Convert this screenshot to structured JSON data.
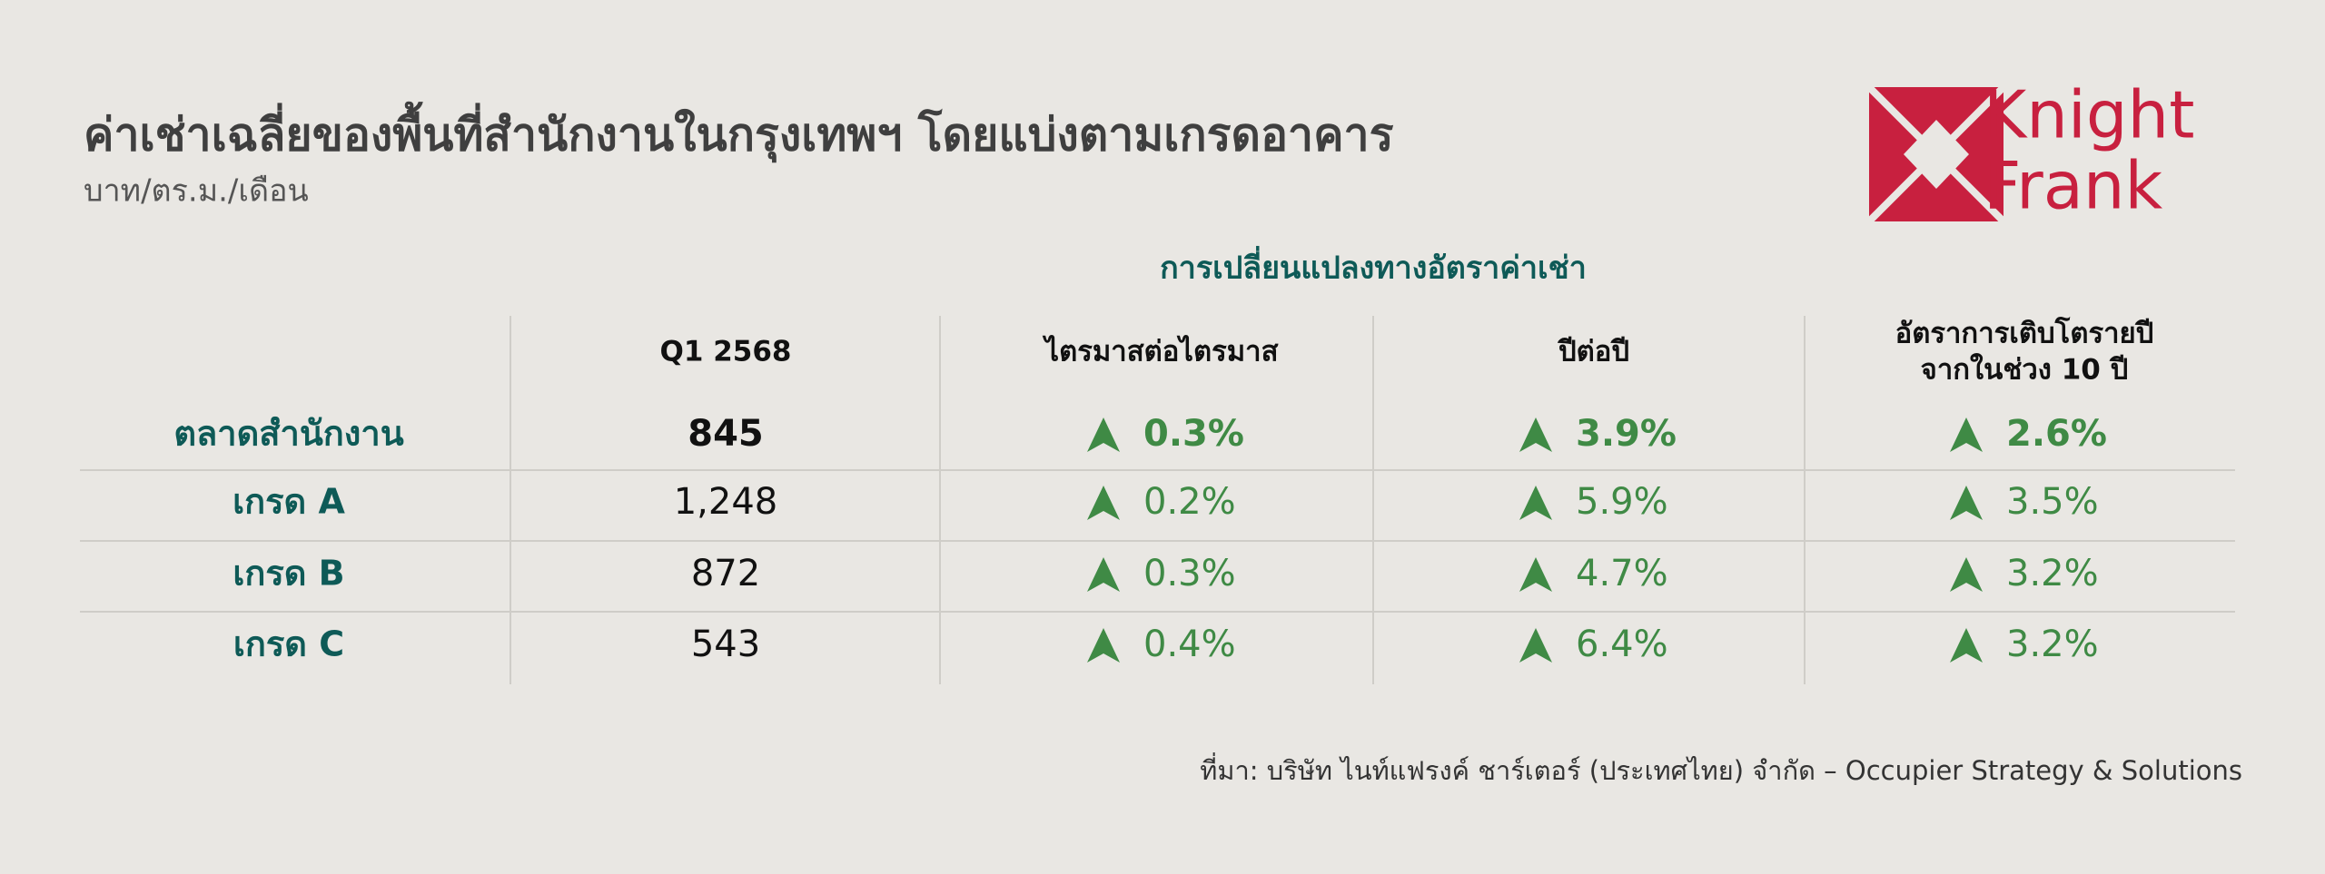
{
  "header": {
    "title": "ค่าเช่าเฉลี่ยของพื้นที่สำนักงานในกรุงเทพฯ โดยแบ่งตามเกรดอาคาร",
    "subtitle": "บาท/ตร.ม./เดือน"
  },
  "logo": {
    "line1": "Knight",
    "line2": "Frank"
  },
  "table": {
    "group_header": "การเปลี่ยนแปลงทางอัตราค่าเช่า",
    "columns": [
      [
        "Q1 2568"
      ],
      [
        "ไตรมาสต่อไตรมาส"
      ],
      [
        "ปีต่อปี"
      ],
      [
        "อัตราการเติบโตรายปี",
        "จากในช่วง 10 ปี"
      ]
    ],
    "rows": [
      {
        "label": "ตลาดสำนักงาน",
        "cells": [
          "845",
          "0.3%",
          "3.9%",
          "2.6%"
        ]
      },
      {
        "label": "เกรด A",
        "cells": [
          "1,248",
          "0.2%",
          "5.9%",
          "3.5%"
        ]
      },
      {
        "label": "เกรด B",
        "cells": [
          "872",
          "0.3%",
          "4.7%",
          "3.2%"
        ]
      },
      {
        "label": "เกรด C",
        "cells": [
          "543",
          "0.4%",
          "6.4%",
          "3.2%"
        ]
      }
    ]
  },
  "source": "ที่มา: บริษัท ไนท์แฟรงค์ ชาร์เตอร์ (ประเทศไทย) จำกัด – Occupier Strategy & Solutions"
}
